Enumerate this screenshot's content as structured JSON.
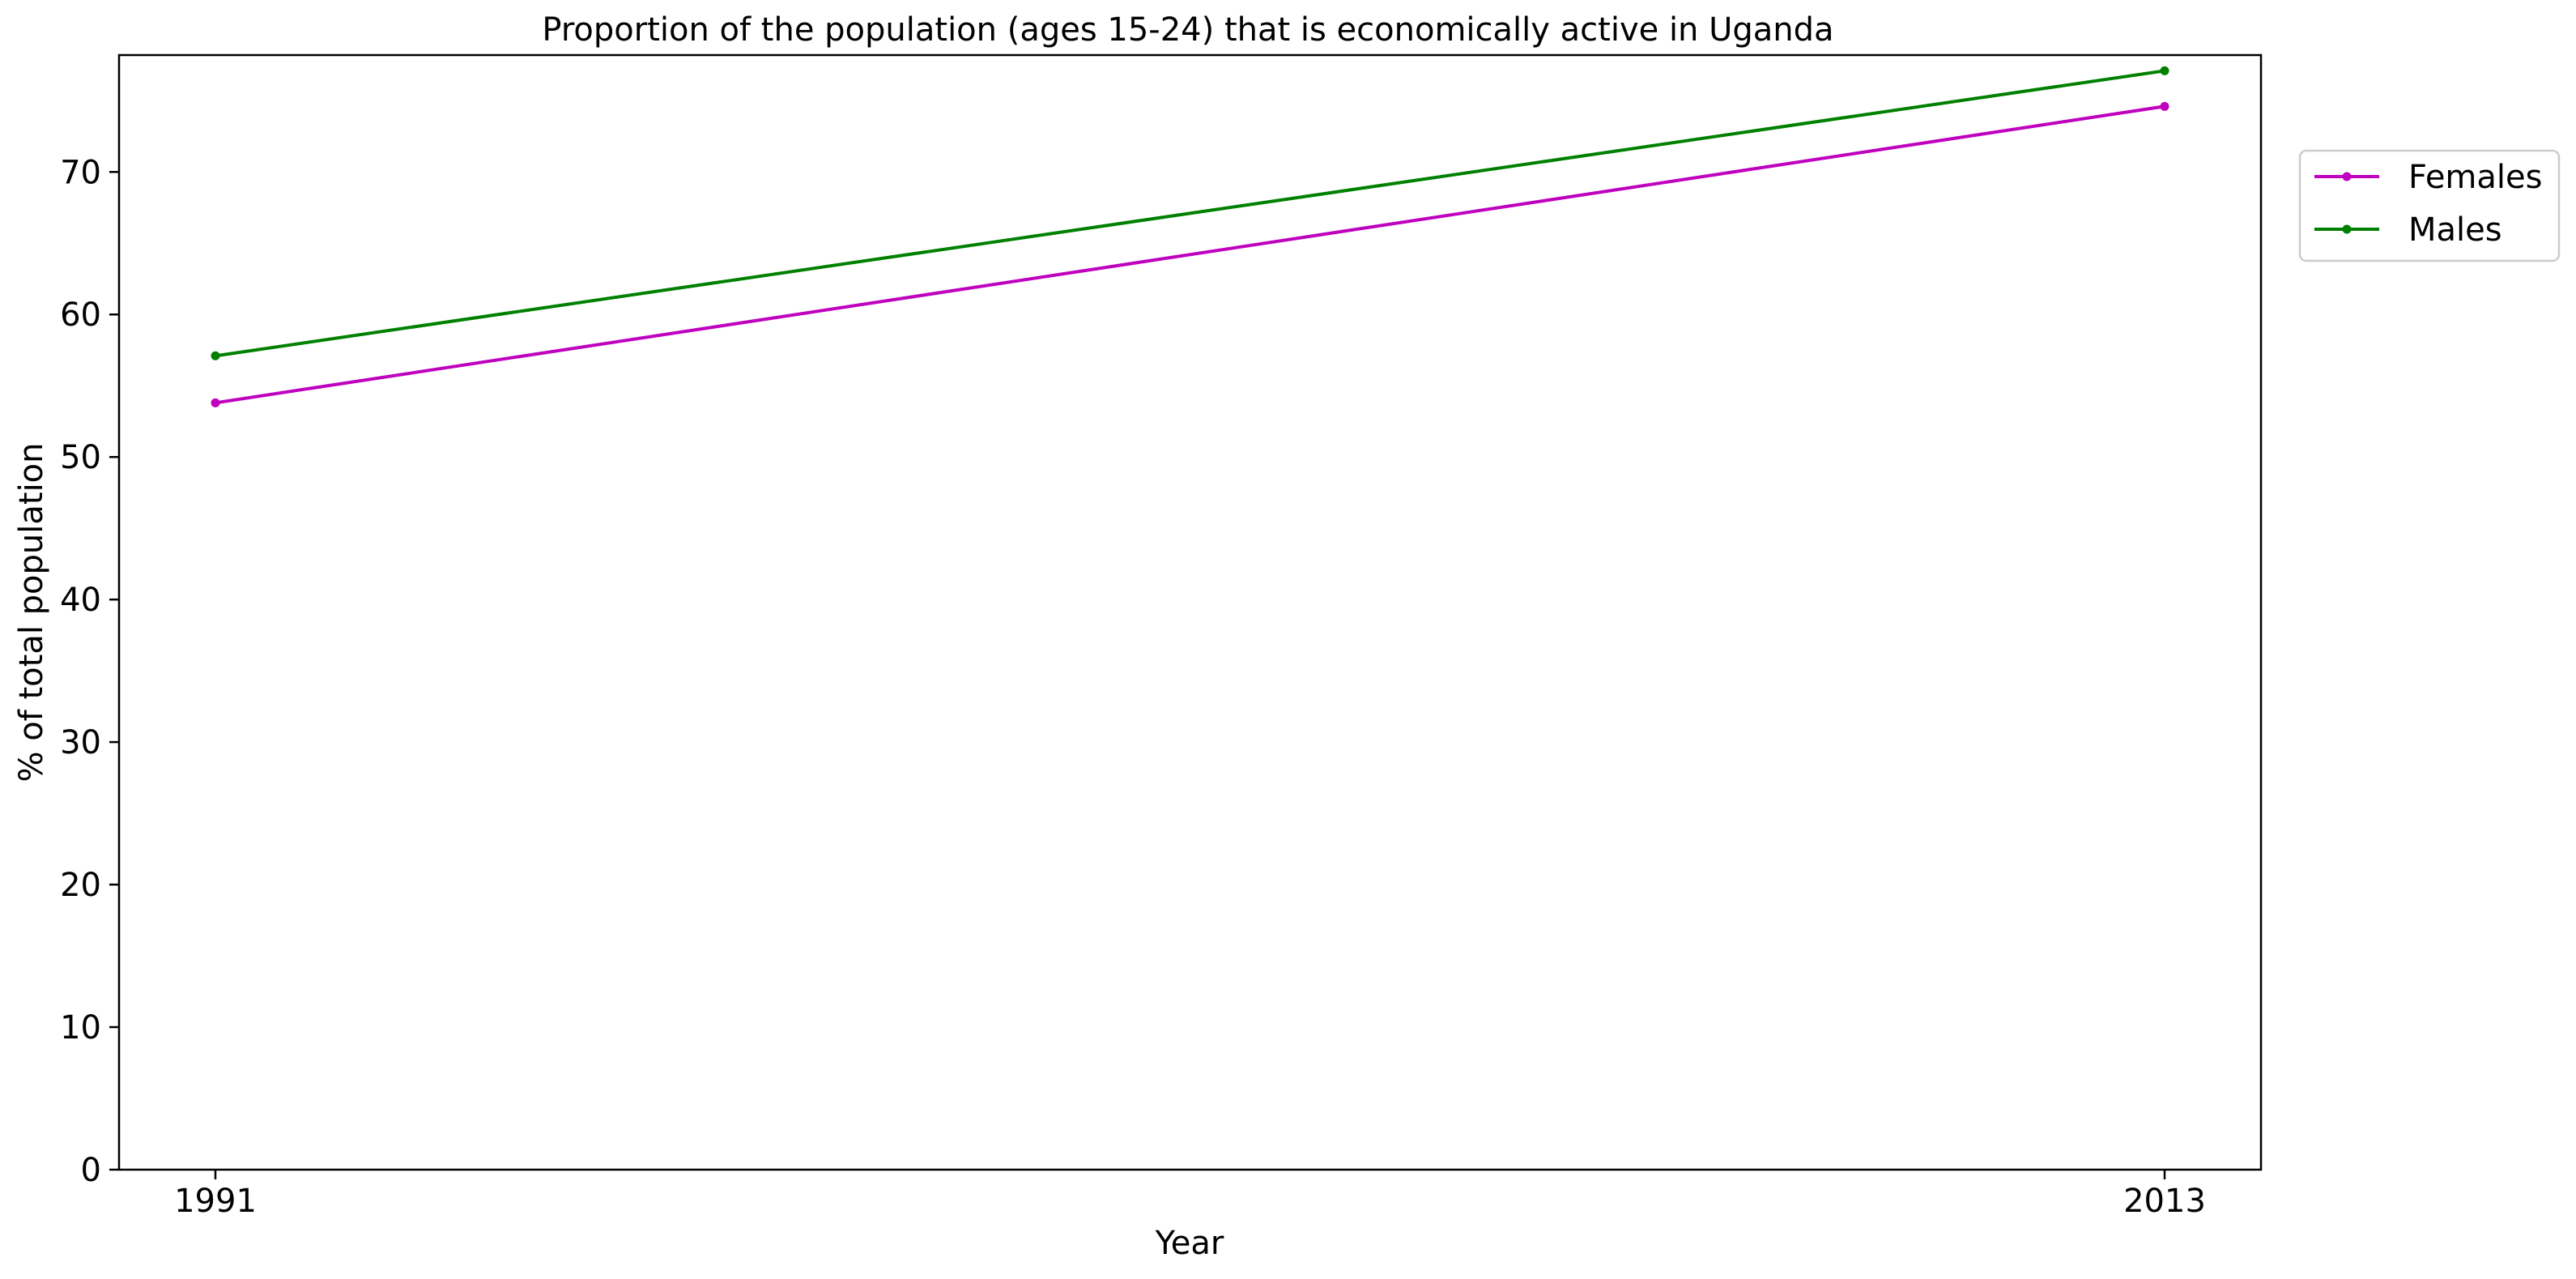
{
  "chart_data": {
    "type": "line",
    "title": "Proportion of the population (ages 15-24) that is economically active in Uganda",
    "xlabel": "Year",
    "ylabel": "% of total population",
    "x": [
      1991,
      2013
    ],
    "xticks": [
      "1991",
      "2013"
    ],
    "ylim": [
      0,
      78.2
    ],
    "yticks": [
      0,
      10,
      20,
      30,
      40,
      50,
      60,
      70
    ],
    "grid": false,
    "legend_position": "right, outside plot area",
    "series": [
      {
        "name": "Females",
        "color": "#bf00bf",
        "values": [
          53.8,
          74.6
        ]
      },
      {
        "name": "Males",
        "color": "#008000",
        "values": [
          57.1,
          77.1
        ]
      }
    ]
  }
}
